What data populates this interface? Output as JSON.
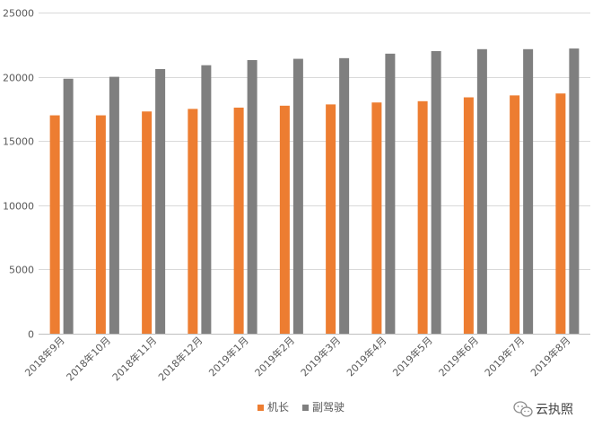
{
  "chart_data": {
    "type": "bar",
    "categories": [
      "2018年9月",
      "2018年10月",
      "2018年11月",
      "2018年12月",
      "2019年1月",
      "2019年2月",
      "2019年3月",
      "2019年4月",
      "2019年5月",
      "2019年6月",
      "2019年7月",
      "2019年8月"
    ],
    "series": [
      {
        "name": "机长",
        "color": "#ed7d31",
        "values": [
          17000,
          17000,
          17300,
          17500,
          17600,
          17750,
          17850,
          18000,
          18100,
          18400,
          18550,
          18700
        ]
      },
      {
        "name": "副驾驶",
        "color": "#7f7f7f",
        "values": [
          19850,
          20000,
          20600,
          20900,
          21300,
          21400,
          21450,
          21800,
          22000,
          22150,
          22150,
          22200
        ]
      }
    ],
    "yticks": [
      0,
      5000,
      10000,
      15000,
      20000,
      25000
    ],
    "ylim": [
      0,
      25000
    ],
    "grid": true,
    "legend_position": "bottom"
  },
  "watermark": {
    "icon": "wechat-icon",
    "text": "云执照"
  }
}
